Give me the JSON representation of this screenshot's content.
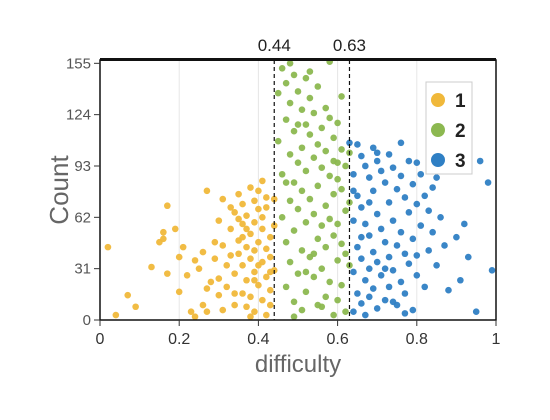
{
  "chart_data": {
    "type": "scatter",
    "title": "",
    "xlabel": "difficulty",
    "ylabel": "Count",
    "xlim": [
      0,
      1
    ],
    "ylim": [
      0,
      157
    ],
    "x_ticks": [
      0,
      0.2,
      0.4,
      0.6,
      0.8,
      1
    ],
    "x_tick_labels": [
      "0",
      "0.2",
      "0.4",
      "0.6",
      "0.8",
      "1"
    ],
    "y_ticks": [
      0,
      31,
      62,
      93,
      124,
      155
    ],
    "y_tick_labels": [
      "0",
      "31",
      "62",
      "93",
      "124",
      "155"
    ],
    "grid": "vertical",
    "legend_position": "top-right",
    "thresholds": [
      {
        "x": 0.44,
        "label": "0.44"
      },
      {
        "x": 0.63,
        "label": "0.63"
      }
    ],
    "series": [
      {
        "name": "1",
        "color": "#f0b83a",
        "points": [
          [
            0.02,
            44
          ],
          [
            0.04,
            3
          ],
          [
            0.07,
            15
          ],
          [
            0.09,
            8
          ],
          [
            0.13,
            32
          ],
          [
            0.15,
            47
          ],
          [
            0.16,
            53
          ],
          [
            0.16,
            49
          ],
          [
            0.17,
            28
          ],
          [
            0.17,
            69
          ],
          [
            0.19,
            55
          ],
          [
            0.2,
            38
          ],
          [
            0.2,
            17
          ],
          [
            0.21,
            44
          ],
          [
            0.22,
            27
          ],
          [
            0.23,
            5
          ],
          [
            0.24,
            36
          ],
          [
            0.24,
            2
          ],
          [
            0.25,
            31
          ],
          [
            0.26,
            41
          ],
          [
            0.26,
            9
          ],
          [
            0.27,
            19
          ],
          [
            0.27,
            5
          ],
          [
            0.27,
            78
          ],
          [
            0.28,
            23
          ],
          [
            0.29,
            37
          ],
          [
            0.29,
            47
          ],
          [
            0.3,
            15
          ],
          [
            0.3,
            60
          ],
          [
            0.3,
            25
          ],
          [
            0.31,
            6
          ],
          [
            0.31,
            45
          ],
          [
            0.31,
            73
          ],
          [
            0.32,
            33
          ],
          [
            0.32,
            20
          ],
          [
            0.33,
            55
          ],
          [
            0.33,
            39
          ],
          [
            0.34,
            9
          ],
          [
            0.34,
            28
          ],
          [
            0.34,
            65
          ],
          [
            0.35,
            76
          ],
          [
            0.35,
            40
          ],
          [
            0.35,
            48
          ],
          [
            0.36,
            16
          ],
          [
            0.36,
            58
          ],
          [
            0.36,
            33
          ],
          [
            0.36,
            70
          ],
          [
            0.37,
            8
          ],
          [
            0.37,
            24
          ],
          [
            0.37,
            44
          ],
          [
            0.37,
            63
          ],
          [
            0.38,
            80
          ],
          [
            0.38,
            52
          ],
          [
            0.38,
            37
          ],
          [
            0.38,
            14
          ],
          [
            0.39,
            72
          ],
          [
            0.39,
            59
          ],
          [
            0.39,
            29
          ],
          [
            0.39,
            5
          ],
          [
            0.4,
            47
          ],
          [
            0.4,
            67
          ],
          [
            0.4,
            21
          ],
          [
            0.4,
            78
          ],
          [
            0.41,
            55
          ],
          [
            0.41,
            35
          ],
          [
            0.41,
            12
          ],
          [
            0.41,
            62
          ],
          [
            0.42,
            43
          ],
          [
            0.42,
            26
          ],
          [
            0.42,
            74
          ],
          [
            0.42,
            68
          ],
          [
            0.43,
            50
          ],
          [
            0.43,
            38
          ],
          [
            0.43,
            18
          ],
          [
            0.43,
            9
          ],
          [
            0.44,
            57
          ],
          [
            0.44,
            30
          ],
          [
            0.39,
            42
          ],
          [
            0.36,
            50
          ],
          [
            0.42,
            3
          ],
          [
            0.33,
            68
          ],
          [
            0.41,
            84
          ],
          [
            0.38,
            2
          ],
          [
            0.4,
            33
          ],
          [
            0.35,
            61
          ],
          [
            0.44,
            73
          ],
          [
            0.37,
            55
          ],
          [
            0.43,
            29
          ],
          [
            0.34,
            16
          ],
          [
            0.39,
            24
          ]
        ]
      },
      {
        "name": "2",
        "color": "#8cb850",
        "points": [
          [
            0.45,
            137
          ],
          [
            0.45,
            108
          ],
          [
            0.46,
            152
          ],
          [
            0.46,
            88
          ],
          [
            0.46,
            62
          ],
          [
            0.47,
            143
          ],
          [
            0.47,
            121
          ],
          [
            0.47,
            20
          ],
          [
            0.47,
            47
          ],
          [
            0.48,
            155
          ],
          [
            0.48,
            131
          ],
          [
            0.48,
            100
          ],
          [
            0.48,
            72
          ],
          [
            0.48,
            35
          ],
          [
            0.49,
            148
          ],
          [
            0.49,
            114
          ],
          [
            0.49,
            83
          ],
          [
            0.49,
            54
          ],
          [
            0.49,
            11
          ],
          [
            0.5,
            138
          ],
          [
            0.5,
            95
          ],
          [
            0.5,
            67
          ],
          [
            0.5,
            28
          ],
          [
            0.51,
            127
          ],
          [
            0.51,
            104
          ],
          [
            0.51,
            78
          ],
          [
            0.51,
            42
          ],
          [
            0.51,
            6
          ],
          [
            0.52,
            146
          ],
          [
            0.52,
            118
          ],
          [
            0.52,
            90
          ],
          [
            0.52,
            59
          ],
          [
            0.52,
            17
          ],
          [
            0.53,
            134
          ],
          [
            0.53,
            112
          ],
          [
            0.53,
            73
          ],
          [
            0.53,
            38
          ],
          [
            0.54,
            125
          ],
          [
            0.54,
            98
          ],
          [
            0.54,
            64
          ],
          [
            0.54,
            26
          ],
          [
            0.55,
            141
          ],
          [
            0.55,
            106
          ],
          [
            0.55,
            81
          ],
          [
            0.55,
            49
          ],
          [
            0.55,
            9
          ],
          [
            0.56,
            116
          ],
          [
            0.56,
            92
          ],
          [
            0.56,
            57
          ],
          [
            0.56,
            31
          ],
          [
            0.57,
            128
          ],
          [
            0.57,
            102
          ],
          [
            0.57,
            69
          ],
          [
            0.57,
            44
          ],
          [
            0.57,
            14
          ],
          [
            0.58,
            122
          ],
          [
            0.58,
            87
          ],
          [
            0.58,
            61
          ],
          [
            0.58,
            23
          ],
          [
            0.59,
            110
          ],
          [
            0.59,
            96
          ],
          [
            0.59,
            76
          ],
          [
            0.59,
            51
          ],
          [
            0.59,
            3
          ],
          [
            0.6,
            119
          ],
          [
            0.6,
            85
          ],
          [
            0.6,
            58
          ],
          [
            0.6,
            36
          ],
          [
            0.6,
            12
          ],
          [
            0.61,
            103
          ],
          [
            0.61,
            79
          ],
          [
            0.61,
            46
          ],
          [
            0.61,
            21
          ],
          [
            0.62,
            93
          ],
          [
            0.62,
            66
          ],
          [
            0.62,
            40
          ],
          [
            0.62,
            5
          ],
          [
            0.63,
            101
          ],
          [
            0.63,
            71
          ],
          [
            0.63,
            33
          ],
          [
            0.58,
            156
          ],
          [
            0.53,
            150
          ],
          [
            0.49,
            2
          ],
          [
            0.56,
            8
          ],
          [
            0.47,
            83
          ],
          [
            0.61,
            135
          ],
          [
            0.54,
            40
          ],
          [
            0.5,
            118
          ],
          [
            0.6,
            95
          ],
          [
            0.52,
            29
          ]
        ]
      },
      {
        "name": "3",
        "color": "#2f7fc4",
        "points": [
          [
            0.63,
            107
          ],
          [
            0.64,
            88
          ],
          [
            0.64,
            60
          ],
          [
            0.64,
            29
          ],
          [
            0.64,
            5
          ],
          [
            0.65,
            106
          ],
          [
            0.65,
            75
          ],
          [
            0.65,
            44
          ],
          [
            0.65,
            16
          ],
          [
            0.66,
            99
          ],
          [
            0.66,
            68
          ],
          [
            0.66,
            37
          ],
          [
            0.66,
            10
          ],
          [
            0.67,
            93
          ],
          [
            0.67,
            58
          ],
          [
            0.67,
            24
          ],
          [
            0.67,
            3
          ],
          [
            0.68,
            86
          ],
          [
            0.68,
            51
          ],
          [
            0.68,
            31
          ],
          [
            0.68,
            14
          ],
          [
            0.69,
            104
          ],
          [
            0.69,
            78
          ],
          [
            0.69,
            41
          ],
          [
            0.69,
            19
          ],
          [
            0.7,
            96
          ],
          [
            0.7,
            64
          ],
          [
            0.7,
            35
          ],
          [
            0.7,
            7
          ],
          [
            0.71,
            90
          ],
          [
            0.71,
            55
          ],
          [
            0.71,
            27
          ],
          [
            0.72,
            83
          ],
          [
            0.72,
            47
          ],
          [
            0.72,
            12
          ],
          [
            0.73,
            100
          ],
          [
            0.73,
            71
          ],
          [
            0.73,
            38
          ],
          [
            0.73,
            20
          ],
          [
            0.74,
            92
          ],
          [
            0.74,
            60
          ],
          [
            0.74,
            30
          ],
          [
            0.75,
            79
          ],
          [
            0.75,
            45
          ],
          [
            0.75,
            9
          ],
          [
            0.76,
            87
          ],
          [
            0.76,
            53
          ],
          [
            0.76,
            23
          ],
          [
            0.77,
            74
          ],
          [
            0.77,
            40
          ],
          [
            0.77,
            16
          ],
          [
            0.78,
            96
          ],
          [
            0.78,
            65
          ],
          [
            0.78,
            34
          ],
          [
            0.79,
            82
          ],
          [
            0.79,
            49
          ],
          [
            0.79,
            6
          ],
          [
            0.8,
            70
          ],
          [
            0.8,
            39
          ],
          [
            0.8,
            27
          ],
          [
            0.81,
            88
          ],
          [
            0.81,
            57
          ],
          [
            0.82,
            75
          ],
          [
            0.82,
            20
          ],
          [
            0.83,
            66
          ],
          [
            0.83,
            42
          ],
          [
            0.84,
            53
          ],
          [
            0.84,
            80
          ],
          [
            0.85,
            33
          ],
          [
            0.86,
            62
          ],
          [
            0.87,
            45
          ],
          [
            0.88,
            18
          ],
          [
            0.9,
            50
          ],
          [
            0.91,
            24
          ],
          [
            0.93,
            38
          ],
          [
            0.95,
            5
          ],
          [
            0.96,
            96
          ],
          [
            0.98,
            83
          ],
          [
            0.99,
            30
          ],
          [
            0.7,
            101
          ],
          [
            0.66,
            50
          ],
          [
            0.76,
            107
          ],
          [
            0.72,
            31
          ],
          [
            0.8,
            95
          ],
          [
            0.68,
            71
          ],
          [
            0.74,
            11
          ],
          [
            0.85,
            86
          ],
          [
            0.64,
            78
          ],
          [
            0.92,
            58
          ],
          [
            0.77,
            4
          ]
        ]
      }
    ]
  }
}
